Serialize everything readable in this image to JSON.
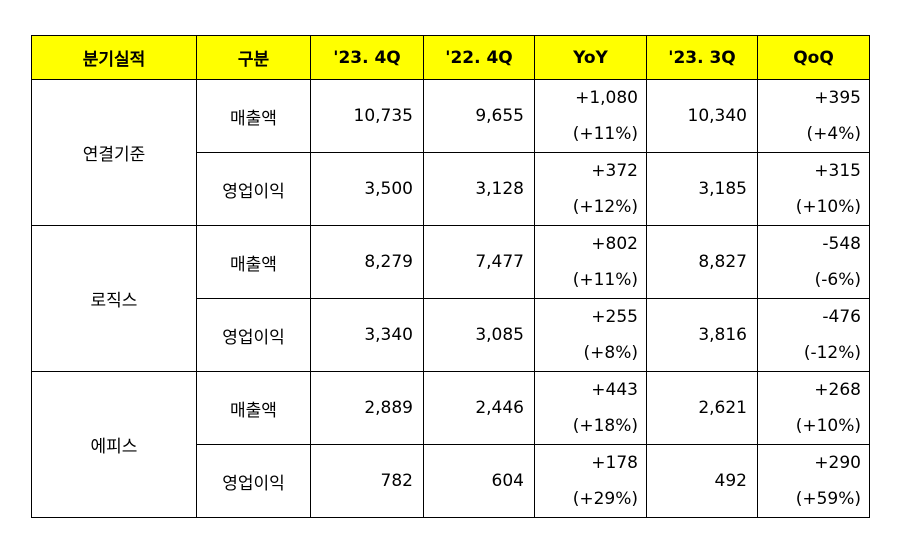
{
  "table": {
    "headers": [
      "분기실적",
      "구분",
      "'23. 4Q",
      "'22. 4Q",
      "YoY",
      "'23. 3Q",
      "QoQ"
    ],
    "groups": [
      {
        "name": "연결기준",
        "rows": [
          {
            "item": "매출액",
            "q4_23": "10,735",
            "q4_22": "9,655",
            "yoy": "+1,080",
            "yoy_pct": "(+11%)",
            "q3_23": "10,340",
            "qoq": "+395",
            "qoq_pct": "(+4%)"
          },
          {
            "item": "영업이익",
            "q4_23": "3,500",
            "q4_22": "3,128",
            "yoy": "+372",
            "yoy_pct": "(+12%)",
            "q3_23": "3,185",
            "qoq": "+315",
            "qoq_pct": "(+10%)"
          }
        ]
      },
      {
        "name": "로직스",
        "rows": [
          {
            "item": "매출액",
            "q4_23": "8,279",
            "q4_22": "7,477",
            "yoy": "+802",
            "yoy_pct": "(+11%)",
            "q3_23": "8,827",
            "qoq": "-548",
            "qoq_pct": "(-6%)"
          },
          {
            "item": "영업이익",
            "q4_23": "3,340",
            "q4_22": "3,085",
            "yoy": "+255",
            "yoy_pct": "(+8%)",
            "q3_23": "3,816",
            "qoq": "-476",
            "qoq_pct": "(-12%)"
          }
        ]
      },
      {
        "name": "에피스",
        "rows": [
          {
            "item": "매출액",
            "q4_23": "2,889",
            "q4_22": "2,446",
            "yoy": "+443",
            "yoy_pct": "(+18%)",
            "q3_23": "2,621",
            "qoq": "+268",
            "qoq_pct": "(+10%)"
          },
          {
            "item": "영업이익",
            "q4_23": "782",
            "q4_22": "604",
            "yoy": "+178",
            "yoy_pct": "(+29%)",
            "q3_23": "492",
            "qoq": "+290",
            "qoq_pct": "(+59%)"
          }
        ]
      }
    ]
  },
  "colors": {
    "header_bg": "#ffff00",
    "border": "#000000"
  }
}
